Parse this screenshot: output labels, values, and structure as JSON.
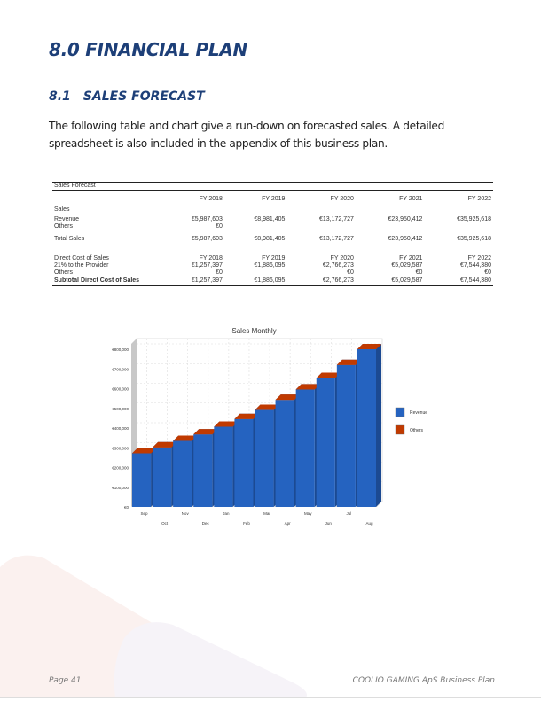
{
  "heading": "8.0 FINANCIAL PLAN",
  "subheading": {
    "number": "8.1",
    "title": "SALES FORECAST"
  },
  "intro": "The following table and chart give a run-down on forecasted sales. A detailed spreadsheet is also included in the appendix of this business plan.",
  "table": {
    "title": "Sales Forecast",
    "years": [
      "FY 2018",
      "FY 2019",
      "FY 2020",
      "FY 2021",
      "FY 2022"
    ],
    "sales_label": "Sales",
    "revenue": {
      "label": "Revenue",
      "values": [
        "€5,987,603",
        "€8,981,405",
        "€13,172,727",
        "€23,950,412",
        "€35,925,618"
      ]
    },
    "others": {
      "label": "Others",
      "values": [
        "€0",
        "",
        "",
        "",
        ""
      ]
    },
    "total_sales": {
      "label": "Total Sales",
      "values": [
        "€5,987,603",
        "€8,981,405",
        "€13,172,727",
        "€23,950,412",
        "€35,925,618"
      ]
    },
    "direct_cost": {
      "label": "Direct Cost of Sales",
      "values": [
        "FY 2018",
        "FY 2019",
        "FY 2020",
        "FY 2021",
        "FY 2022"
      ]
    },
    "provider": {
      "label": "21% to the Provider",
      "values": [
        "€1,257,397",
        "€1,886,095",
        "€2,766,273",
        "€5,029,587",
        "€7,544,380"
      ]
    },
    "cost_others": {
      "label": "Others",
      "values": [
        "€0",
        "",
        "€0",
        "€0",
        "€0"
      ]
    },
    "subtotal": {
      "label": "Subtotal Direct Cost of Sales",
      "values": [
        "€1,257,397",
        "€1,886,095",
        "€2,766,273",
        "€5,029,587",
        "€7,544,380"
      ]
    }
  },
  "chart_data": {
    "type": "bar",
    "title": "Sales Monthly",
    "stacked": true,
    "categories": [
      "Sep",
      "Oct",
      "Nov",
      "Dec",
      "Jan",
      "Feb",
      "Mar",
      "Apr",
      "May",
      "Jun",
      "Jul",
      "Aug"
    ],
    "series": [
      {
        "name": "Revenue",
        "color": "#2563c0",
        "values": [
          272000,
          302000,
          335000,
          368000,
          407000,
          446000,
          492000,
          543000,
          596000,
          654000,
          720000,
          800000
        ]
      },
      {
        "name": "Others",
        "color": "#c03a00",
        "values": [
          0,
          0,
          0,
          0,
          0,
          0,
          0,
          0,
          0,
          0,
          0,
          0
        ]
      }
    ],
    "yticks": [
      "€0",
      "€100,000",
      "€200,000",
      "€300,000",
      "€400,000",
      "€500,000",
      "€600,000",
      "€700,000",
      "€800,000"
    ],
    "ylim": [
      0,
      800000
    ],
    "grid": true,
    "legend": "right"
  },
  "footer": {
    "page": "Page 41",
    "doc": "COOLIO GAMING ApS Business Plan"
  }
}
